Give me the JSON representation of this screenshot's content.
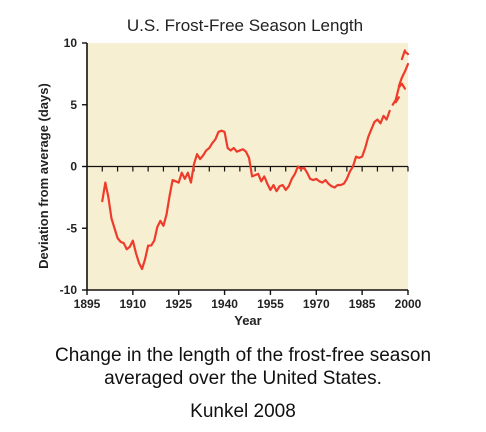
{
  "chart_data": {
    "type": "line",
    "title": "U.S. Frost-Free Season Length",
    "xlabel": "Year",
    "ylabel": "Deviation from average (days)",
    "xlim": [
      1895,
      2000
    ],
    "ylim": [
      -10,
      10
    ],
    "x_ticks": [
      1895,
      1910,
      1925,
      1940,
      1955,
      1970,
      1985,
      2000
    ],
    "y_ticks": [
      -10,
      -5,
      0,
      5,
      10
    ],
    "grid": false,
    "legend": "none",
    "colors": {
      "plot_background": "#f7efd1",
      "line": "#ef3b2c",
      "axis": "#111111"
    },
    "series": [
      {
        "x": [
          1900,
          1901,
          1902,
          1903,
          1904,
          1905,
          1906,
          1907,
          1908,
          1909,
          1910,
          1911,
          1912,
          1913,
          1914,
          1915,
          1916,
          1917,
          1918,
          1919,
          1920,
          1921,
          1922,
          1923,
          1924,
          1925,
          1926,
          1927,
          1928,
          1929,
          1930,
          1931,
          1932,
          1933,
          1934,
          1935,
          1936,
          1937,
          1938,
          1939,
          1940,
          1941,
          1942,
          1943,
          1944,
          1945,
          1946,
          1947,
          1948,
          1949,
          1950,
          1951,
          1952,
          1953,
          1954,
          1955,
          1956,
          1957,
          1958,
          1959,
          1960,
          1961,
          1962,
          1963,
          1964,
          1965,
          1966,
          1967,
          1968,
          1969,
          1970,
          1971,
          1972,
          1973,
          1974,
          1975,
          1976,
          1977,
          1978,
          1979,
          1980,
          1981,
          1982,
          1983,
          1984,
          1985,
          1986,
          1987,
          1988,
          1989,
          1990,
          1991,
          1992,
          1993,
          1994
        ],
        "values": [
          -2.8,
          -1.3,
          -2.5,
          -4.2,
          -5.0,
          -5.8,
          -6.1,
          -6.2,
          -6.7,
          -6.5,
          -6.0,
          -7.0,
          -7.8,
          -8.3,
          -7.5,
          -6.4,
          -6.4,
          -6.0,
          -4.9,
          -4.4,
          -4.8,
          -3.9,
          -2.4,
          -1.1,
          -1.2,
          -1.3,
          -0.5,
          -1.0,
          -0.5,
          -1.3,
          0.2,
          1.0,
          0.6,
          0.9,
          1.3,
          1.5,
          1.9,
          2.2,
          2.8,
          2.9,
          2.8,
          1.5,
          1.3,
          1.5,
          1.2,
          1.3,
          1.4,
          1.2,
          0.7,
          -0.8,
          -0.7,
          -0.6,
          -1.2,
          -0.8,
          -1.4,
          -1.9,
          -1.5,
          -2.0,
          -1.6,
          -1.5,
          -1.9,
          -1.6,
          -1.0,
          -0.6,
          0.0,
          -0.2,
          -0.1,
          -0.5,
          -1.0,
          -1.1,
          -1.0,
          -1.2,
          -1.3,
          -1.1,
          -1.4,
          -1.6,
          -1.7,
          -1.5,
          -1.5,
          -1.4,
          -1.0,
          -0.4,
          0.0,
          0.8,
          0.7,
          0.8,
          1.5,
          2.4,
          3.0,
          3.6,
          3.8,
          3.5,
          4.1,
          3.8,
          4.5
        ]
      },
      {
        "x": [
          1995,
          1996,
          1997,
          1998,
          1999
        ],
        "values": [
          5.0,
          5.4,
          6.4,
          6.7,
          6.3
        ]
      },
      {
        "x": [
          1996,
          1997
        ],
        "values": [
          5.2,
          5.6
        ]
      },
      {
        "x": [
          1997,
          1998,
          1999,
          2000
        ],
        "values": [
          6.5,
          7.2,
          7.7,
          8.3
        ]
      },
      {
        "x": [
          1998,
          1999
        ],
        "values": [
          8.7,
          9.4
        ]
      },
      {
        "x": [
          1999,
          2000
        ],
        "values": [
          9.3,
          9.1
        ]
      }
    ]
  },
  "caption": {
    "line1": "Change in the length of the frost-free season",
    "line2": "averaged over the United States.",
    "source": "Kunkel 2008"
  }
}
